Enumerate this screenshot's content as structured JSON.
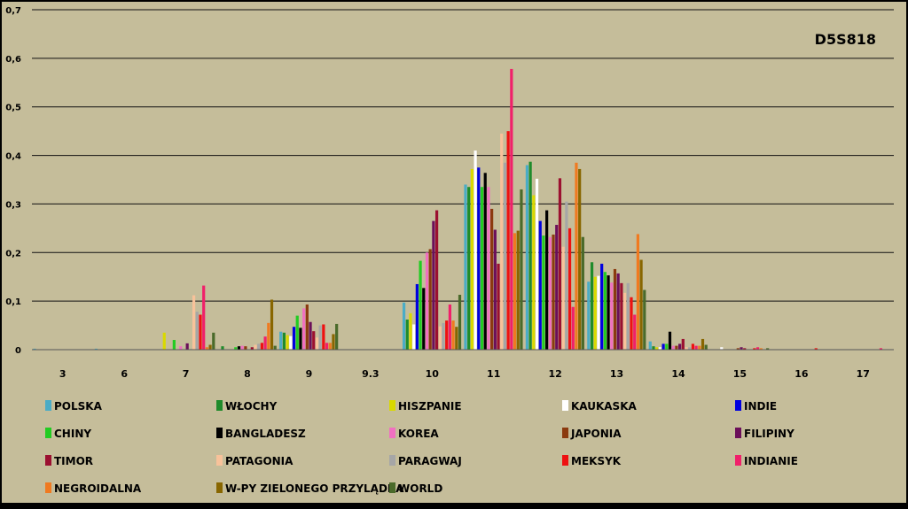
{
  "chart_data": {
    "type": "bar",
    "title": "D5S818",
    "xlabel": "",
    "ylabel": "",
    "ylim": [
      0,
      0.7
    ],
    "yticks": [
      "0",
      "0,1",
      "0,2",
      "0,3",
      "0,4",
      "0,5",
      "0,6",
      "0,7"
    ],
    "grid": true,
    "legend_position": "bottom",
    "categories": [
      "3",
      "6",
      "7",
      "8",
      "9",
      "9.3",
      "10",
      "11",
      "12",
      "13",
      "14",
      "15",
      "16",
      "17"
    ],
    "series": [
      {
        "name": "POLSKA",
        "color": "#4bacc6",
        "values": [
          0.002,
          0.002,
          0,
          0,
          0.037,
          0,
          0.097,
          0.34,
          0.38,
          0.14,
          0.017,
          0,
          0,
          0
        ]
      },
      {
        "name": "WŁOCHY",
        "color": "#1f8b2b",
        "values": [
          0,
          0,
          0,
          0.007,
          0.035,
          0,
          0.062,
          0.335,
          0.387,
          0.18,
          0.007,
          0,
          0,
          0
        ]
      },
      {
        "name": "HISZPANIE",
        "color": "#d9d900",
        "values": [
          0,
          0,
          0.035,
          0,
          0.03,
          0,
          0.075,
          0.372,
          0.318,
          0.15,
          0.005,
          0,
          0,
          0
        ]
      },
      {
        "name": "KAUKASKA",
        "color": "#ffffff",
        "values": [
          0,
          0,
          0,
          0,
          0.028,
          0,
          0.052,
          0.41,
          0.352,
          0.152,
          0.005,
          0.005,
          0,
          0
        ]
      },
      {
        "name": "INDIE",
        "color": "#0000e0",
        "values": [
          0,
          0,
          0,
          0,
          0.047,
          0,
          0.135,
          0.375,
          0.265,
          0.177,
          0.012,
          0,
          0,
          0
        ]
      },
      {
        "name": "CHINY",
        "color": "#22cc22",
        "values": [
          0,
          0,
          0.02,
          0.005,
          0.07,
          0,
          0.183,
          0.335,
          0.235,
          0.16,
          0.012,
          0,
          0,
          0
        ]
      },
      {
        "name": "BANGLADESZ",
        "color": "#000000",
        "values": [
          0,
          0,
          0,
          0.007,
          0.045,
          0,
          0.127,
          0.364,
          0.287,
          0.153,
          0.037,
          0,
          0,
          0
        ]
      },
      {
        "name": "KOREA",
        "color": "#f070c0",
        "values": [
          0,
          0,
          0.007,
          0.008,
          0.085,
          0,
          0.2,
          0.335,
          0.232,
          0.138,
          0.008,
          0,
          0,
          0
        ]
      },
      {
        "name": "JAPONIA",
        "color": "#8b3a0f",
        "values": [
          0,
          0,
          0,
          0.007,
          0.093,
          0,
          0.207,
          0.29,
          0.237,
          0.166,
          0.008,
          0.003,
          0,
          0
        ]
      },
      {
        "name": "FILIPINY",
        "color": "#6b0f5a",
        "values": [
          0,
          0,
          0.013,
          0,
          0.057,
          0,
          0.265,
          0.247,
          0.257,
          0.157,
          0.012,
          0.005,
          0,
          0
        ]
      },
      {
        "name": "TIMOR",
        "color": "#9b1030",
        "values": [
          0,
          0,
          0,
          0.005,
          0.038,
          0,
          0.287,
          0.177,
          0.353,
          0.137,
          0.022,
          0.003,
          0,
          0
        ]
      },
      {
        "name": "PATAGONIA",
        "color": "#f8c29a",
        "values": [
          0,
          0,
          0.112,
          0.01,
          0.025,
          0,
          0.048,
          0.445,
          0.212,
          0.117,
          0.005,
          0,
          0,
          0
        ]
      },
      {
        "name": "PARAGWAJ",
        "color": "#a6a6a6",
        "values": [
          0,
          0,
          0.078,
          0.012,
          0.05,
          0,
          0.055,
          0.385,
          0.305,
          0.137,
          0.005,
          0,
          0,
          0
        ]
      },
      {
        "name": "MEKSYK",
        "color": "#ee1111",
        "values": [
          0,
          0,
          0.072,
          0.014,
          0.052,
          0,
          0.06,
          0.45,
          0.25,
          0.108,
          0.012,
          0.003,
          0.003,
          0
        ]
      },
      {
        "name": "INDIANIE",
        "color": "#f0206a",
        "values": [
          0,
          0,
          0.132,
          0.027,
          0.014,
          0,
          0.093,
          0.578,
          0.088,
          0.072,
          0.008,
          0.005,
          0,
          0.003
        ]
      },
      {
        "name": "NEGROIDALNA",
        "color": "#f07a20",
        "values": [
          0,
          0,
          0.005,
          0.055,
          0.014,
          0,
          0.06,
          0.24,
          0.385,
          0.238,
          0.008,
          0.003,
          0,
          0
        ]
      },
      {
        "name": "W-PY ZIELONEGO PRZYLĄDKA",
        "color": "#886600",
        "values": [
          0,
          0,
          0.01,
          0.103,
          0.032,
          0,
          0.047,
          0.245,
          0.372,
          0.185,
          0.022,
          0,
          0,
          0
        ]
      },
      {
        "name": "WORLD",
        "color": "#4a6a2a",
        "values": [
          0,
          0,
          0.035,
          0.008,
          0.053,
          0,
          0.113,
          0.33,
          0.232,
          0.123,
          0.01,
          0.003,
          0,
          0
        ]
      }
    ]
  }
}
